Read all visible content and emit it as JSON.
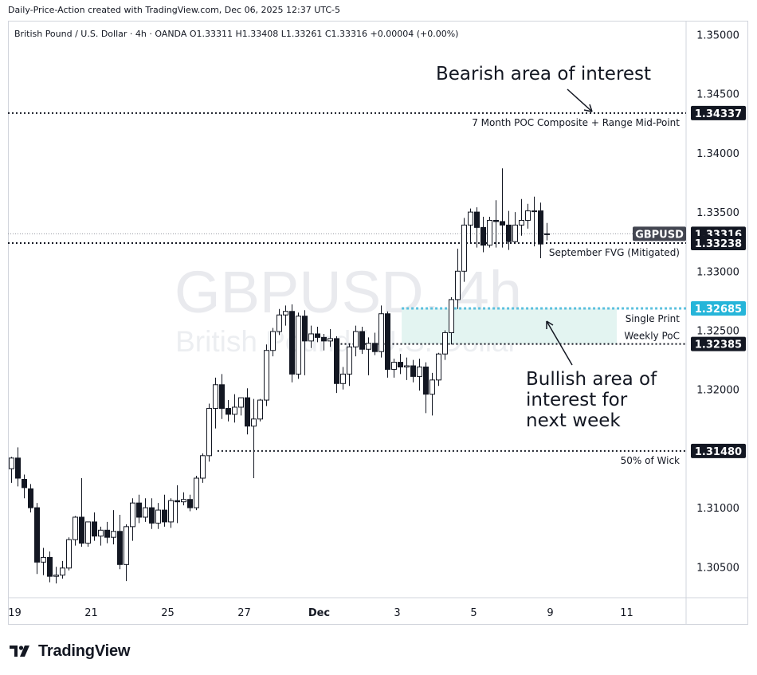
{
  "header": {
    "caption": "Daily-Price-Action created with TradingView.com, Dec 06, 2025 12:37 UTC-5"
  },
  "footer": {
    "brand": "TradingView",
    "logo_icon": "tradingview-logo-icon"
  },
  "chart_data": {
    "type": "candlestick",
    "legend": "British Pound / U.S. Dollar · 4h · OANDA  O1.33311  H1.33408  L1.33261  C1.33316  +0.00004 (+0.00%)",
    "watermark": {
      "symbol": "GBPUSD, 4h",
      "name": "British Pound / U.S. Dollar"
    },
    "ylim": [
      1.3015,
      1.3525
    ],
    "y_ticks": [
      "1.35000",
      "1.34500",
      "1.34000",
      "1.33500",
      "1.33000",
      "1.32500",
      "1.32000",
      "1.31000",
      "1.30500"
    ],
    "x_ticks": [
      {
        "label": "19",
        "index": 0.5
      },
      {
        "label": "21",
        "index": 12.5
      },
      {
        "label": "25",
        "index": 24.5
      },
      {
        "label": "27",
        "index": 36.5
      },
      {
        "label": "Dec",
        "index": 48.5,
        "bold": true
      },
      {
        "label": "3",
        "index": 60.5
      },
      {
        "label": "5",
        "index": 72.5
      },
      {
        "label": "9",
        "index": 84.5
      },
      {
        "label": "11",
        "index": 96.5
      }
    ],
    "x_range": [
      -0.5,
      107.3
    ],
    "candles": [
      [
        1.3133,
        1.3143,
        1.3121,
        1.3142
      ],
      [
        1.3142,
        1.3151,
        1.3118,
        1.3125
      ],
      [
        1.3124,
        1.3128,
        1.3108,
        1.3117
      ],
      [
        1.3116,
        1.312,
        1.3096,
        1.31
      ],
      [
        1.31,
        1.3104,
        1.3044,
        1.3054
      ],
      [
        1.3054,
        1.3066,
        1.3043,
        1.3058
      ],
      [
        1.3058,
        1.3063,
        1.3037,
        1.3042
      ],
      [
        1.3042,
        1.305,
        1.3036,
        1.3043
      ],
      [
        1.3043,
        1.3055,
        1.304,
        1.3049
      ],
      [
        1.3049,
        1.3075,
        1.3047,
        1.3073
      ],
      [
        1.3073,
        1.3093,
        1.3068,
        1.3092
      ],
      [
        1.3092,
        1.3125,
        1.3067,
        1.307
      ],
      [
        1.307,
        1.3088,
        1.3067,
        1.3088
      ],
      [
        1.3088,
        1.3096,
        1.3072,
        1.3076
      ],
      [
        1.3076,
        1.3084,
        1.3068,
        1.3081
      ],
      [
        1.3081,
        1.3088,
        1.307,
        1.3075
      ],
      [
        1.3075,
        1.3098,
        1.3069,
        1.308
      ],
      [
        1.308,
        1.3094,
        1.3048,
        1.3052
      ],
      [
        1.3052,
        1.3086,
        1.3038,
        1.3084
      ],
      [
        1.3084,
        1.3108,
        1.3072,
        1.3104
      ],
      [
        1.3104,
        1.3111,
        1.3087,
        1.3092
      ],
      [
        1.3092,
        1.3108,
        1.3088,
        1.31
      ],
      [
        1.31,
        1.3108,
        1.3082,
        1.3087
      ],
      [
        1.3087,
        1.3104,
        1.3082,
        1.3098
      ],
      [
        1.3098,
        1.3111,
        1.3084,
        1.3088
      ],
      [
        1.3088,
        1.3108,
        1.3083,
        1.3106
      ],
      [
        1.3106,
        1.3119,
        1.3087,
        1.3105
      ],
      [
        1.3105,
        1.3113,
        1.3102,
        1.3107
      ],
      [
        1.3107,
        1.3111,
        1.3097,
        1.31
      ],
      [
        1.31,
        1.3127,
        1.3098,
        1.3125
      ],
      [
        1.3125,
        1.3146,
        1.3121,
        1.3144
      ],
      [
        1.3144,
        1.3188,
        1.3139,
        1.3184
      ],
      [
        1.3184,
        1.321,
        1.3167,
        1.3204
      ],
      [
        1.3204,
        1.3213,
        1.3175,
        1.3184
      ],
      [
        1.3184,
        1.3191,
        1.3173,
        1.3179
      ],
      [
        1.3179,
        1.3196,
        1.3172,
        1.3185
      ],
      [
        1.3185,
        1.3193,
        1.3178,
        1.3193
      ],
      [
        1.3193,
        1.3201,
        1.3162,
        1.3169
      ],
      [
        1.3169,
        1.3192,
        1.3125,
        1.3175
      ],
      [
        1.3175,
        1.3192,
        1.3173,
        1.3191
      ],
      [
        1.3191,
        1.3238,
        1.3186,
        1.3233
      ],
      [
        1.3233,
        1.3252,
        1.3228,
        1.3249
      ],
      [
        1.3249,
        1.3268,
        1.3246,
        1.3263
      ],
      [
        1.3263,
        1.3271,
        1.3254,
        1.3266
      ],
      [
        1.3266,
        1.3272,
        1.3206,
        1.3213
      ],
      [
        1.3213,
        1.3265,
        1.3209,
        1.3262
      ],
      [
        1.3262,
        1.3267,
        1.3212,
        1.3241
      ],
      [
        1.3241,
        1.3254,
        1.3235,
        1.3247
      ],
      [
        1.3247,
        1.3253,
        1.324,
        1.3244
      ],
      [
        1.3244,
        1.3247,
        1.3233,
        1.3241
      ],
      [
        1.3241,
        1.3251,
        1.3236,
        1.3243
      ],
      [
        1.3243,
        1.3245,
        1.3197,
        1.3205
      ],
      [
        1.3205,
        1.3219,
        1.32,
        1.3213
      ],
      [
        1.3213,
        1.3238,
        1.3203,
        1.3236
      ],
      [
        1.3236,
        1.3254,
        1.3228,
        1.3249
      ],
      [
        1.3249,
        1.3253,
        1.323,
        1.3234
      ],
      [
        1.3234,
        1.3244,
        1.3212,
        1.3239
      ],
      [
        1.3239,
        1.3248,
        1.3229,
        1.3232
      ],
      [
        1.3232,
        1.3271,
        1.3227,
        1.3264
      ],
      [
        1.3264,
        1.3266,
        1.321,
        1.3217
      ],
      [
        1.3217,
        1.3226,
        1.321,
        1.3223
      ],
      [
        1.3223,
        1.323,
        1.3213,
        1.3219
      ],
      [
        1.3219,
        1.3227,
        1.3208,
        1.322
      ],
      [
        1.322,
        1.3225,
        1.3206,
        1.3211
      ],
      [
        1.3211,
        1.3226,
        1.3199,
        1.3219
      ],
      [
        1.3219,
        1.3223,
        1.318,
        1.3196
      ],
      [
        1.3196,
        1.3214,
        1.3178,
        1.3208
      ],
      [
        1.3208,
        1.3231,
        1.3203,
        1.323
      ],
      [
        1.323,
        1.325,
        1.3225,
        1.3248
      ],
      [
        1.3248,
        1.3278,
        1.3238,
        1.3276
      ],
      [
        1.3276,
        1.3319,
        1.3268,
        1.33
      ],
      [
        1.33,
        1.3345,
        1.3291,
        1.3339
      ],
      [
        1.3339,
        1.3353,
        1.3324,
        1.335
      ],
      [
        1.335,
        1.3354,
        1.332,
        1.3337
      ],
      [
        1.3337,
        1.3346,
        1.3316,
        1.3322
      ],
      [
        1.3322,
        1.3346,
        1.332,
        1.3343
      ],
      [
        1.3343,
        1.336,
        1.332,
        1.3342
      ],
      [
        1.3342,
        1.3387,
        1.332,
        1.3339
      ],
      [
        1.3339,
        1.3351,
        1.3318,
        1.3325
      ],
      [
        1.3325,
        1.335,
        1.3323,
        1.3339
      ],
      [
        1.3339,
        1.3361,
        1.333,
        1.3343
      ],
      [
        1.3343,
        1.3357,
        1.3336,
        1.3351
      ],
      [
        1.3351,
        1.3363,
        1.3321,
        1.3351
      ],
      [
        1.3351,
        1.3358,
        1.3311,
        1.3323
      ],
      [
        1.33311,
        1.33408,
        1.33261,
        1.33316
      ]
    ],
    "levels": [
      {
        "price": 1.34337,
        "label": "1.34337",
        "note": "7 Month POC Composite + Range Mid-Point",
        "style": "dotted",
        "color": "#131722",
        "badge_bg": "#131722"
      },
      {
        "price": 1.33316,
        "label": "1.33316",
        "symbol": "GBPUSD",
        "style": "faint",
        "color": "#9598a1",
        "badge_bg": "#131722"
      },
      {
        "price": 1.33238,
        "label": "1.33238",
        "note": "September FVG (Mitigated)",
        "style": "dotted",
        "color": "#131722",
        "badge_bg": "#131722"
      },
      {
        "price": 1.32685,
        "label": "1.32685",
        "note": "Single Print",
        "style": "dotted",
        "color": "#5bc0de",
        "badge_bg": "#26b5d9"
      },
      {
        "price": 1.32385,
        "label": "1.32385",
        "note": "Weekly PoC",
        "style": "dotted",
        "color": "#131722",
        "badge_bg": "#131722"
      },
      {
        "price": 1.3148,
        "label": "1.31480",
        "note": "50% of Wick",
        "style": "dotted",
        "color": "#131722",
        "badge_bg": "#131722"
      }
    ],
    "zone": {
      "from": 1.32385,
      "to": 1.32685,
      "color": "#e3f4f1"
    },
    "annotations": {
      "bearish": "Bearish area of interest",
      "bullish": [
        "Bullish area of",
        "interest for",
        "next week"
      ]
    },
    "colors": {
      "up": "#ffffff",
      "down": "#131722",
      "wick": "#131722"
    }
  }
}
